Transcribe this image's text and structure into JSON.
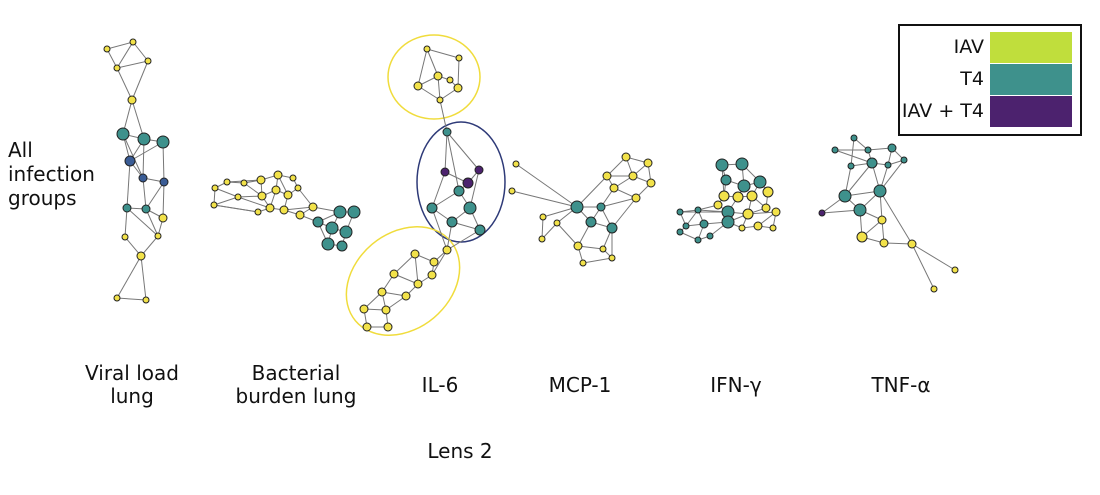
{
  "row_label": [
    "All",
    "infection",
    "groups"
  ],
  "panels": [
    {
      "line1": "Viral load",
      "line2": "lung"
    },
    {
      "line1": "Bacterial",
      "line2": "burden lung"
    },
    {
      "line1": "IL-6",
      "line2": ""
    },
    {
      "line1": "MCP-1",
      "line2": ""
    },
    {
      "line1": "IFN-γ",
      "line2": ""
    },
    {
      "line1": "TNF-α",
      "line2": ""
    }
  ],
  "footer_label": "Lens 2",
  "legend": [
    {
      "label": "IAV",
      "color": "#c0de3c"
    },
    {
      "label": "T4",
      "color": "#3e918c"
    },
    {
      "label": "IAV + T4",
      "color": "#4c226e"
    }
  ],
  "colors": {
    "yellow_node": "#f2e24a",
    "teal_node": "#3e918c",
    "blue_node": "#3a5c95",
    "purple_node": "#4c226e",
    "edge": "#777777",
    "yellow_highlight": "#f0dc3c",
    "blue_highlight": "#2e3a78"
  }
}
